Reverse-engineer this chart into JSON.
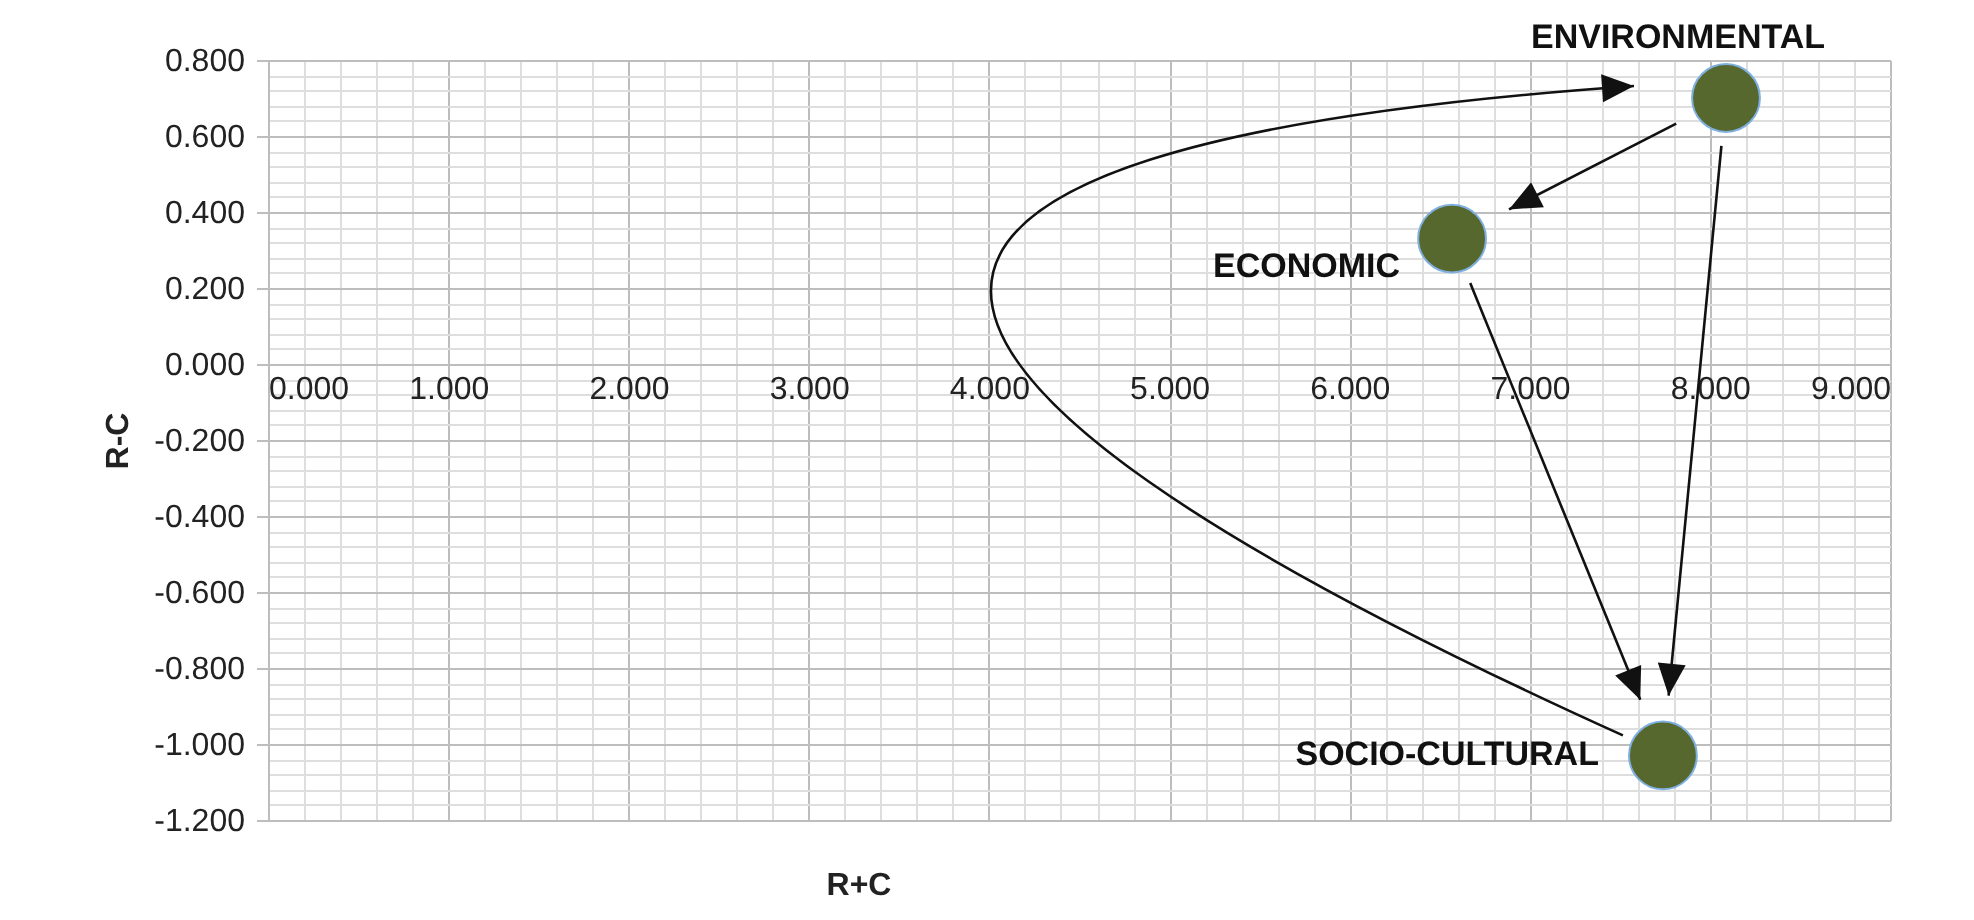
{
  "chart_data": {
    "type": "scatter",
    "xlabel": "R+C",
    "ylabel": "R-C",
    "marker": "circle",
    "grid": true,
    "series": [
      {
        "name": "ENVIRONMENTAL",
        "color": "#56682d",
        "x": [
          8.09
        ],
        "values": [
          0.7
        ]
      },
      {
        "name": "ECONOMIC",
        "color": "#56682d",
        "x": [
          6.57
        ],
        "values": [
          0.33
        ]
      },
      {
        "name": "SOCIO-CULTURAL",
        "color": "#56682d",
        "x": [
          7.74
        ],
        "values": [
          -1.03
        ]
      }
    ],
    "xlim": [
      0,
      9
    ],
    "ylim": [
      -1.2,
      0.8
    ],
    "xticks": [
      {
        "value": 0,
        "label": "0.000"
      },
      {
        "value": 0.2,
        "label": null
      },
      {
        "value": 0.4,
        "label": null
      },
      {
        "value": 0.6,
        "label": null
      },
      {
        "value": 0.8,
        "label": null
      },
      {
        "value": 1,
        "label": "1.000"
      },
      {
        "value": 1.2,
        "label": null
      },
      {
        "value": 1.4,
        "label": null
      },
      {
        "value": 1.6,
        "label": null
      },
      {
        "value": 1.8,
        "label": null
      },
      {
        "value": 2,
        "label": "2.000"
      },
      {
        "value": 2.2,
        "label": null
      },
      {
        "value": 2.4,
        "label": null
      },
      {
        "value": 2.6,
        "label": null
      },
      {
        "value": 2.8,
        "label": null
      },
      {
        "value": 3,
        "label": "3.000"
      },
      {
        "value": 3.2,
        "label": null
      },
      {
        "value": 3.4,
        "label": null
      },
      {
        "value": 3.6,
        "label": null
      },
      {
        "value": 3.8,
        "label": null
      },
      {
        "value": 4,
        "label": "4.000"
      },
      {
        "value": 4.2,
        "label": null
      },
      {
        "value": 4.4,
        "label": null
      },
      {
        "value": 4.6,
        "label": null
      },
      {
        "value": 4.8,
        "label": null
      },
      {
        "value": 5,
        "label": "5.000"
      },
      {
        "value": 5.2,
        "label": null
      },
      {
        "value": 5.4,
        "label": null
      },
      {
        "value": 5.6,
        "label": null
      },
      {
        "value": 5.8,
        "label": null
      },
      {
        "value": 6,
        "label": "6.000"
      },
      {
        "value": 6.2,
        "label": null
      },
      {
        "value": 6.4,
        "label": null
      },
      {
        "value": 6.6,
        "label": null
      },
      {
        "value": 6.8,
        "label": null
      },
      {
        "value": 7,
        "label": "7.000"
      },
      {
        "value": 7.2,
        "label": null
      },
      {
        "value": 7.4,
        "label": null
      },
      {
        "value": 7.6,
        "label": null
      },
      {
        "value": 7.8,
        "label": null
      },
      {
        "value": 8,
        "label": "8.000"
      },
      {
        "value": 8.2,
        "label": null
      },
      {
        "value": 8.4,
        "label": null
      },
      {
        "value": 8.6,
        "label": null
      },
      {
        "value": 8.8,
        "label": null
      },
      {
        "value": 9,
        "label": "9.000"
      }
    ],
    "yticks": [
      {
        "value": -1.2,
        "label": "-1.200"
      },
      {
        "value": -1.16,
        "label": null
      },
      {
        "value": -1.12,
        "label": null
      },
      {
        "value": -1.08,
        "label": null
      },
      {
        "value": -1.04,
        "label": null
      },
      {
        "value": -1,
        "label": "-1.000"
      },
      {
        "value": -0.96,
        "label": null
      },
      {
        "value": -0.92,
        "label": null
      },
      {
        "value": -0.88,
        "label": null
      },
      {
        "value": -0.84,
        "label": null
      },
      {
        "value": -0.8,
        "label": "-0.800"
      },
      {
        "value": -0.76,
        "label": null
      },
      {
        "value": -0.72,
        "label": null
      },
      {
        "value": -0.68,
        "label": null
      },
      {
        "value": -0.64,
        "label": null
      },
      {
        "value": -0.6,
        "label": "-0.600"
      },
      {
        "value": -0.56,
        "label": null
      },
      {
        "value": -0.52,
        "label": null
      },
      {
        "value": -0.48,
        "label": null
      },
      {
        "value": -0.44,
        "label": null
      },
      {
        "value": -0.4,
        "label": "-0.400"
      },
      {
        "value": -0.36,
        "label": null
      },
      {
        "value": -0.32,
        "label": null
      },
      {
        "value": -0.28,
        "label": null
      },
      {
        "value": -0.24,
        "label": null
      },
      {
        "value": -0.2,
        "label": "-0.200"
      },
      {
        "value": -0.16,
        "label": null
      },
      {
        "value": -0.12,
        "label": null
      },
      {
        "value": -0.08,
        "label": null
      },
      {
        "value": -0.04,
        "label": null
      },
      {
        "value": 0,
        "label": "0.000"
      },
      {
        "value": 0.04,
        "label": null
      },
      {
        "value": 0.08,
        "label": null
      },
      {
        "value": 0.12,
        "label": null
      },
      {
        "value": 0.16,
        "label": null
      },
      {
        "value": 0.2,
        "label": "0.200"
      },
      {
        "value": 0.24,
        "label": null
      },
      {
        "value": 0.28,
        "label": null
      },
      {
        "value": 0.32,
        "label": null
      },
      {
        "value": 0.36,
        "label": null
      },
      {
        "value": 0.4,
        "label": "0.400"
      },
      {
        "value": 0.44,
        "label": null
      },
      {
        "value": 0.48,
        "label": null
      },
      {
        "value": 0.52,
        "label": null
      },
      {
        "value": 0.56,
        "label": null
      },
      {
        "value": 0.6,
        "label": "0.600"
      },
      {
        "value": 0.64,
        "label": null
      },
      {
        "value": 0.68,
        "label": null
      },
      {
        "value": 0.72,
        "label": null
      },
      {
        "value": 0.76,
        "label": null
      },
      {
        "value": 0.8,
        "label": "0.800"
      }
    ]
  }
}
